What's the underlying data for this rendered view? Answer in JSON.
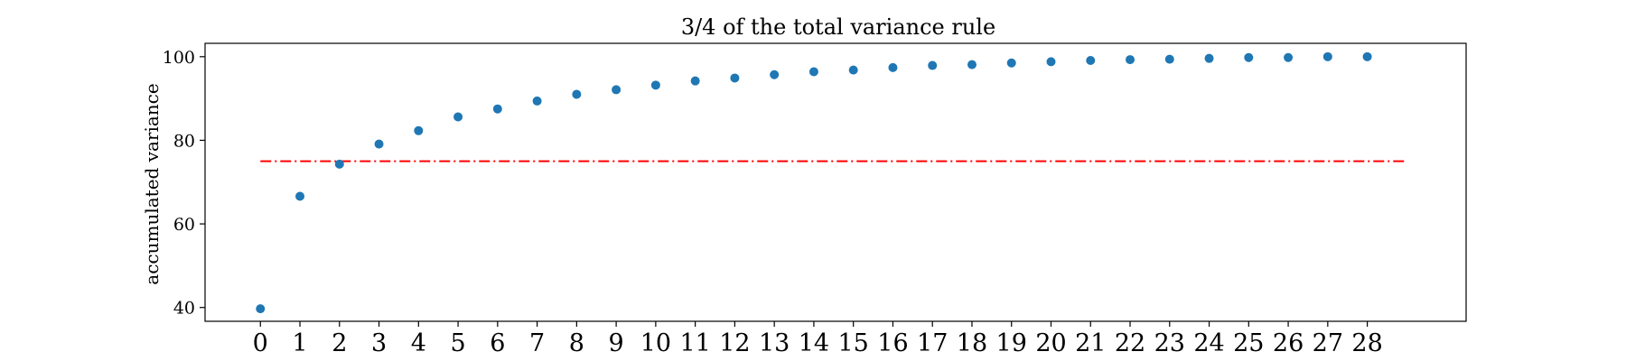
{
  "chart_data": {
    "type": "scatter",
    "title": "3/4 of the total variance rule",
    "xlabel": "",
    "ylabel": "accumulated variance",
    "x": [
      0,
      1,
      2,
      3,
      4,
      5,
      6,
      7,
      8,
      9,
      10,
      11,
      12,
      13,
      14,
      15,
      16,
      17,
      18,
      19,
      20,
      21,
      22,
      23,
      24,
      25,
      26,
      27,
      28
    ],
    "y": [
      39.7,
      66.6,
      74.3,
      79.1,
      82.3,
      85.6,
      87.5,
      89.4,
      91.0,
      92.1,
      93.2,
      94.2,
      94.9,
      95.7,
      96.4,
      96.8,
      97.4,
      97.9,
      98.1,
      98.5,
      98.8,
      99.1,
      99.3,
      99.4,
      99.6,
      99.8,
      99.8,
      100.0,
      100.0
    ],
    "xticks": [
      "0",
      "1",
      "2",
      "3",
      "4",
      "5",
      "6",
      "7",
      "8",
      "9",
      "10",
      "11",
      "12",
      "13",
      "14",
      "15",
      "16",
      "17",
      "18",
      "19",
      "20",
      "21",
      "22",
      "23",
      "24",
      "25",
      "26",
      "27",
      "28"
    ],
    "yticks": [
      "40",
      "60",
      "80",
      "100"
    ],
    "xlim": [
      -1.4,
      30.5
    ],
    "ylim": [
      36.7,
      103.2
    ],
    "threshold": {
      "y": 75,
      "x_start": 0,
      "x_end": 29,
      "style": "dash-dot",
      "color": "#ff0000"
    },
    "marker_color": "#1f77b4",
    "grid": false,
    "legend": "none"
  }
}
